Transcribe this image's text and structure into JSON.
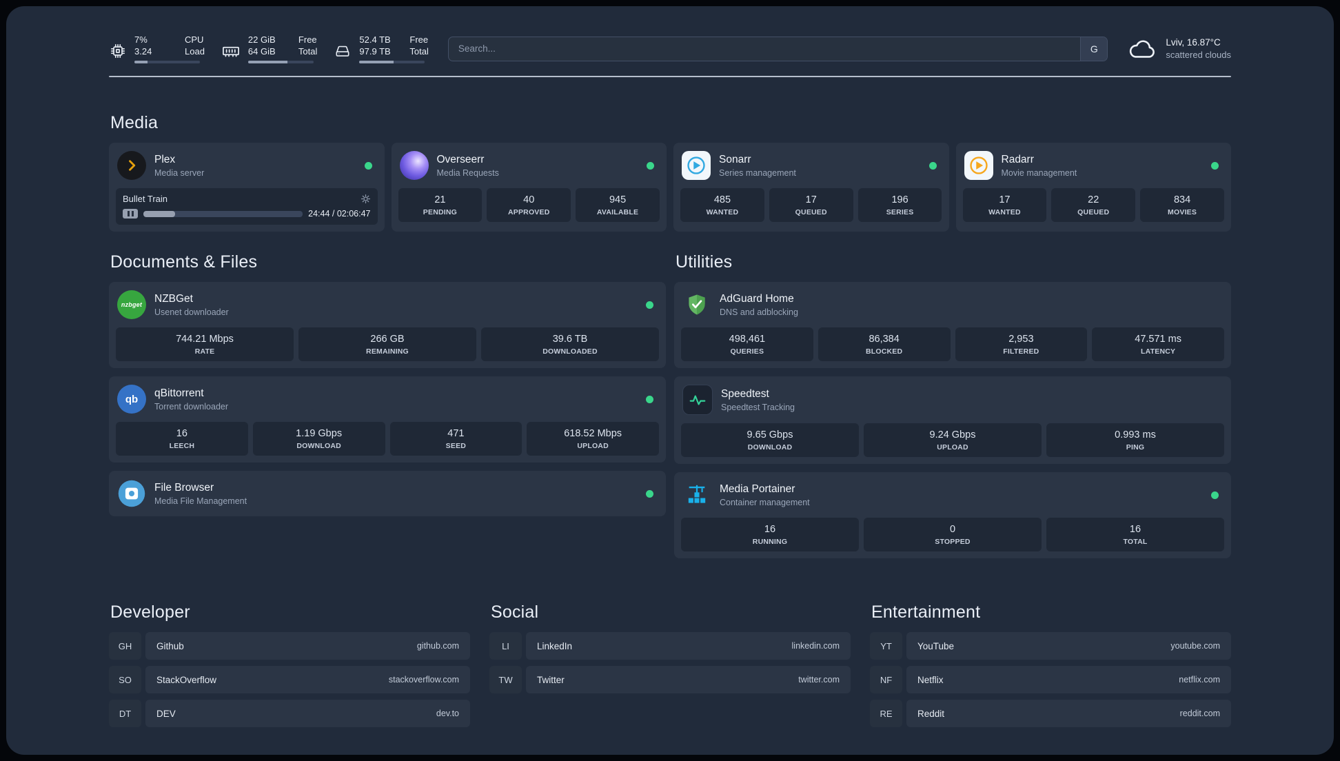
{
  "colors": {
    "status_online": "#3ad68b",
    "plex_gold": "#e5a00d",
    "sonarr_blue": "#31a9e1",
    "radarr_amber": "#f6a71d",
    "adguard_green": "#5fb760",
    "speedtest_green": "#34d399",
    "portainer_blue": "#19b1ea"
  },
  "topbar": {
    "resources": [
      {
        "icon": "cpu-icon",
        "value_top": "7%",
        "value_bottom": "3.24",
        "label_top": "CPU",
        "label_bottom": "Load",
        "progress_percent": 20
      },
      {
        "icon": "memory-icon",
        "value_top": "22 GiB",
        "value_bottom": "64 GiB",
        "label_top": "Free",
        "label_bottom": "Total",
        "progress_percent": 60
      },
      {
        "icon": "disk-icon",
        "value_top": "52.4 TB",
        "value_bottom": "97.9 TB",
        "label_top": "Free",
        "label_bottom": "Total",
        "progress_percent": 52
      }
    ],
    "search": {
      "placeholder": "Search...",
      "provider_label": "G"
    },
    "weather": {
      "icon": "cloud-icon",
      "location": "Lviv, 16.87°C",
      "condition": "scattered clouds"
    }
  },
  "sections": {
    "media": {
      "title": "Media",
      "services": [
        {
          "icon": "plex-icon",
          "name": "Plex",
          "description": "Media server",
          "online": true,
          "now_playing": {
            "title": "Bullet Train",
            "time": "24:44 / 02:06:47",
            "progress_percent": 20
          }
        },
        {
          "icon": "overseerr-icon",
          "name": "Overseerr",
          "description": "Media Requests",
          "online": true,
          "stats": [
            {
              "value": "21",
              "label": "PENDING"
            },
            {
              "value": "40",
              "label": "APPROVED"
            },
            {
              "value": "945",
              "label": "AVAILABLE"
            }
          ]
        },
        {
          "icon": "sonarr-icon",
          "name": "Sonarr",
          "description": "Series management",
          "online": true,
          "stats": [
            {
              "value": "485",
              "label": "WANTED"
            },
            {
              "value": "17",
              "label": "QUEUED"
            },
            {
              "value": "196",
              "label": "SERIES"
            }
          ]
        },
        {
          "icon": "radarr-icon",
          "name": "Radarr",
          "description": "Movie management",
          "online": true,
          "stats": [
            {
              "value": "17",
              "label": "WANTED"
            },
            {
              "value": "22",
              "label": "QUEUED"
            },
            {
              "value": "834",
              "label": "MOVIES"
            }
          ]
        }
      ]
    },
    "documents": {
      "title": "Documents & Files",
      "services": [
        {
          "icon": "nzbget-icon",
          "name": "NZBGet",
          "description": "Usenet downloader",
          "online": true,
          "stats": [
            {
              "value": "744.21 Mbps",
              "label": "RATE"
            },
            {
              "value": "266 GB",
              "label": "REMAINING"
            },
            {
              "value": "39.6 TB",
              "label": "DOWNLOADED"
            }
          ]
        },
        {
          "icon": "qbittorrent-icon",
          "name": "qBittorrent",
          "description": "Torrent downloader",
          "online": true,
          "stats": [
            {
              "value": "16",
              "label": "LEECH"
            },
            {
              "value": "1.19 Gbps",
              "label": "DOWNLOAD"
            },
            {
              "value": "471",
              "label": "SEED"
            },
            {
              "value": "618.52 Mbps",
              "label": "UPLOAD"
            }
          ]
        },
        {
          "icon": "filebrowser-icon",
          "name": "File Browser",
          "description": "Media File Management",
          "online": true,
          "stats": []
        }
      ]
    },
    "utilities": {
      "title": "Utilities",
      "services": [
        {
          "icon": "adguard-icon",
          "name": "AdGuard Home",
          "description": "DNS and adblocking",
          "online": false,
          "stats": [
            {
              "value": "498,461",
              "label": "QUERIES"
            },
            {
              "value": "86,384",
              "label": "BLOCKED"
            },
            {
              "value": "2,953",
              "label": "FILTERED"
            },
            {
              "value": "47.571 ms",
              "label": "LATENCY"
            }
          ]
        },
        {
          "icon": "speedtest-icon",
          "name": "Speedtest",
          "description": "Speedtest Tracking",
          "online": false,
          "stats": [
            {
              "value": "9.65 Gbps",
              "label": "DOWNLOAD"
            },
            {
              "value": "9.24 Gbps",
              "label": "UPLOAD"
            },
            {
              "value": "0.993 ms",
              "label": "PING"
            }
          ]
        },
        {
          "icon": "portainer-icon",
          "name": "Media Portainer",
          "description": "Container management",
          "online": true,
          "stats": [
            {
              "value": "16",
              "label": "RUNNING"
            },
            {
              "value": "0",
              "label": "STOPPED"
            },
            {
              "value": "16",
              "label": "TOTAL"
            }
          ]
        }
      ]
    }
  },
  "bookmarks": [
    {
      "title": "Developer",
      "items": [
        {
          "abbr": "GH",
          "name": "Github",
          "url": "github.com"
        },
        {
          "abbr": "SO",
          "name": "StackOverflow",
          "url": "stackoverflow.com"
        },
        {
          "abbr": "DT",
          "name": "DEV",
          "url": "dev.to"
        }
      ]
    },
    {
      "title": "Social",
      "items": [
        {
          "abbr": "LI",
          "name": "LinkedIn",
          "url": "linkedin.com"
        },
        {
          "abbr": "TW",
          "name": "Twitter",
          "url": "twitter.com"
        }
      ]
    },
    {
      "title": "Entertainment",
      "items": [
        {
          "abbr": "YT",
          "name": "YouTube",
          "url": "youtube.com"
        },
        {
          "abbr": "NF",
          "name": "Netflix",
          "url": "netflix.com"
        },
        {
          "abbr": "RE",
          "name": "Reddit",
          "url": "reddit.com"
        }
      ]
    }
  ]
}
